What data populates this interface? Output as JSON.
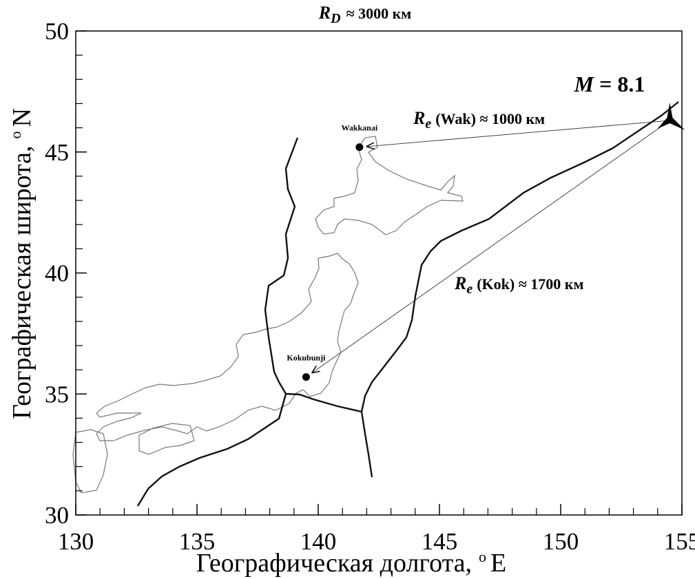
{
  "chart_data": {
    "type": "map",
    "title": {
      "symbol": "R",
      "subscript": "D",
      "text": "≈ 3000 км"
    },
    "xlabel": {
      "text": "Географическая долгота,",
      "degree": "o",
      "unit": "E"
    },
    "ylabel": {
      "text": "Географическая широта,",
      "degree": "o",
      "unit": "N"
    },
    "xlim": [
      130,
      155
    ],
    "ylim": [
      30,
      50
    ],
    "xticks": [
      130,
      135,
      140,
      145,
      150,
      155
    ],
    "yticks": [
      30,
      35,
      40,
      45,
      50
    ],
    "xminorticks": [
      131,
      132,
      133,
      134,
      136,
      137,
      138,
      139,
      141,
      142,
      143,
      144,
      146,
      147,
      148,
      149,
      151,
      152,
      153,
      154
    ],
    "yminorticks": [
      31,
      32,
      33,
      34,
      36,
      37,
      38,
      39,
      41,
      42,
      43,
      44,
      46,
      47,
      48,
      49
    ],
    "stations": [
      {
        "name": "Wakkanai",
        "lon": 141.7,
        "lat": 45.2
      },
      {
        "name": "Kokubunji",
        "lon": 139.5,
        "lat": 35.7
      }
    ],
    "epicenter": {
      "lon": 154.5,
      "lat": 46.3
    },
    "annotations": [
      {
        "symbol": "M",
        "text": "= 8.1"
      },
      {
        "symbol": "R",
        "subscript": "e",
        "text": "(Wak) ≈ 1000 км"
      },
      {
        "symbol": "R",
        "subscript": "e",
        "text": "(Kok) ≈ 1700 км"
      }
    ]
  }
}
